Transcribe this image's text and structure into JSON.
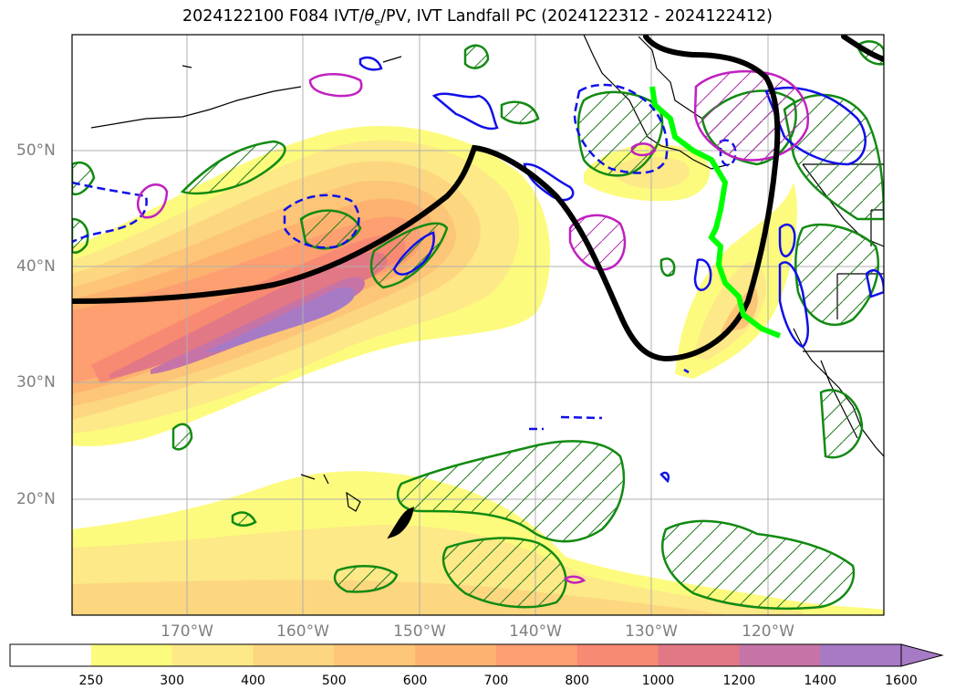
{
  "title": "2024122100 F084 IVT/θe/PV, IVT Landfall PC (2024122312 - 2024122412)",
  "title_parts": {
    "prefix": "2024122100 F084 IVT/",
    "theta": "θ",
    "sub": "e",
    "suffix": "/PV, IVT Landfall PC (2024122312 - 2024122412)"
  },
  "lat_labels": [
    "50°N",
    "40°N",
    "30°N",
    "20°N"
  ],
  "lon_labels": [
    "170°W",
    "160°W",
    "150°W",
    "140°W",
    "130°W",
    "120°W"
  ],
  "colorbar": {
    "ticks": [
      "250",
      "300",
      "400",
      "500",
      "600",
      "700",
      "800",
      "1000",
      "1200",
      "1400",
      "1600"
    ],
    "colors": [
      "#ffffff",
      "#fdfb7d",
      "#fde987",
      "#fdd680",
      "#fdc577",
      "#fdb36f",
      "#fd9f70",
      "#f88973",
      "#e27885",
      "#c674a7",
      "#a77ac6"
    ],
    "extend": "max"
  },
  "map": {
    "projection": "equirectangular",
    "lon_range": [
      180,
      110
    ],
    "lat_range": [
      10,
      60
    ],
    "grid": true,
    "contours": {
      "ivt_filled": "yellow-red-purple shading (kg/m/s)",
      "black_thick": "dynamic tropopause / PV contour",
      "green_hatched": "theta-e contours",
      "blue": "negative anomaly",
      "magenta": "positive anomaly",
      "lime": "IVT landfall line"
    }
  }
}
